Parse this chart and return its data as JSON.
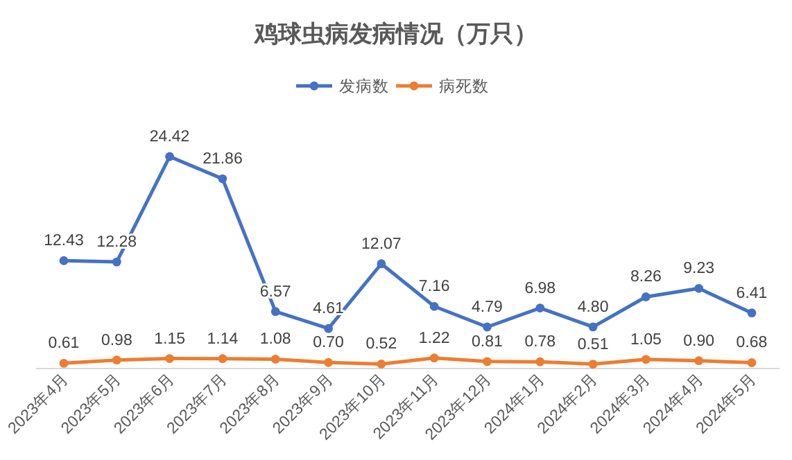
{
  "chart_data": {
    "type": "line",
    "title": "鸡球虫病发病情况（万只）",
    "categories": [
      "2023年4月",
      "2023年5月",
      "2023年6月",
      "2023年7月",
      "2023年8月",
      "2023年9月",
      "2023年10月",
      "2023年11月",
      "2023年12月",
      "2024年1月",
      "2024年2月",
      "2024年3月",
      "2024年4月",
      "2024年5月"
    ],
    "series": [
      {
        "name": "发病数",
        "color": "#4472c4",
        "values": [
          12.43,
          12.28,
          24.42,
          21.86,
          6.57,
          4.61,
          12.07,
          7.16,
          4.79,
          6.98,
          4.8,
          8.26,
          9.23,
          6.41
        ],
        "value_labels": [
          "12.43",
          "12.28",
          "24.42",
          "21.86",
          "6.57",
          "4.61",
          "12.07",
          "7.16",
          "4.79",
          "6.98",
          "4.80",
          "8.26",
          "9.23",
          "6.41"
        ]
      },
      {
        "name": "病死数",
        "color": "#ed7d31",
        "values": [
          0.61,
          0.98,
          1.15,
          1.14,
          1.08,
          0.7,
          0.52,
          1.22,
          0.81,
          0.78,
          0.51,
          1.05,
          0.9,
          0.68
        ],
        "value_labels": [
          "0.61",
          "0.98",
          "1.15",
          "1.14",
          "1.08",
          "0.70",
          "0.52",
          "1.22",
          "0.81",
          "0.78",
          "0.51",
          "1.05",
          "0.90",
          "0.68"
        ]
      }
    ],
    "legend": "top",
    "marker": "circle",
    "grid": false
  }
}
